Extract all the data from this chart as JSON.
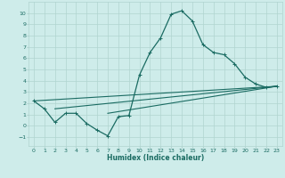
{
  "xlabel": "Humidex (Indice chaleur)",
  "bg_color": "#ceecea",
  "grid_color": "#b0d4d0",
  "line_color": "#1a6b62",
  "xlim": [
    -0.5,
    23.5
  ],
  "ylim": [
    -1.8,
    11.0
  ],
  "yticks": [
    -1,
    0,
    1,
    2,
    3,
    4,
    5,
    6,
    7,
    8,
    9,
    10
  ],
  "xticks": [
    0,
    1,
    2,
    3,
    4,
    5,
    6,
    7,
    8,
    9,
    10,
    11,
    12,
    13,
    14,
    15,
    16,
    17,
    18,
    19,
    20,
    21,
    22,
    23
  ],
  "main_line": {
    "x": [
      0,
      1,
      2,
      3,
      4,
      5,
      6,
      7,
      8,
      9,
      10,
      11,
      12,
      13,
      14,
      15,
      16,
      17,
      18,
      19,
      20,
      21,
      22,
      23
    ],
    "y": [
      2.2,
      1.5,
      0.3,
      1.1,
      1.1,
      0.2,
      -0.4,
      -0.9,
      0.8,
      0.9,
      4.5,
      6.5,
      7.8,
      9.9,
      10.2,
      9.3,
      7.2,
      6.5,
      6.3,
      5.5,
      4.3,
      3.7,
      3.4,
      3.5
    ]
  },
  "trend_line1": {
    "x": [
      0,
      23
    ],
    "y": [
      2.2,
      3.5
    ]
  },
  "trend_line2": {
    "x": [
      2,
      23
    ],
    "y": [
      1.5,
      3.5
    ]
  },
  "trend_line3": {
    "x": [
      7,
      23
    ],
    "y": [
      1.1,
      3.5
    ]
  }
}
